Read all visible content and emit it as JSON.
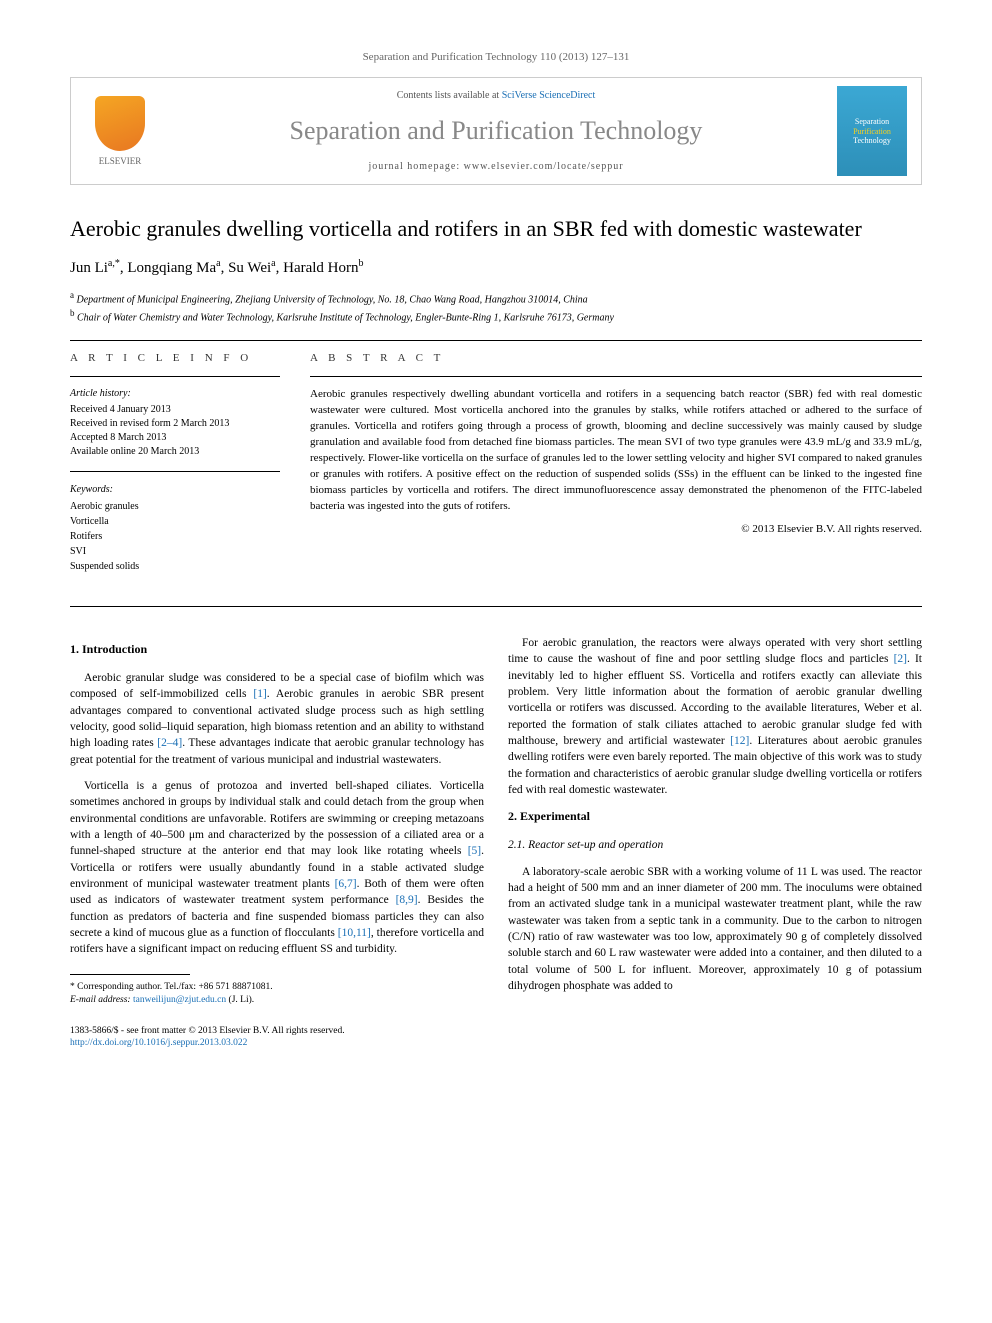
{
  "header": {
    "citation": "Separation and Purification Technology 110 (2013) 127–131",
    "contents_prefix": "Contents lists available at ",
    "contents_link": "SciVerse ScienceDirect",
    "journal_name": "Separation and Purification Technology",
    "homepage_prefix": "journal homepage: ",
    "homepage_url": "www.elsevier.com/locate/seppur",
    "publisher": "ELSEVIER",
    "cover_word1": "Separation",
    "cover_word2": "Purification",
    "cover_word3": "Technology"
  },
  "title": "Aerobic granules dwelling vorticella and rotifers in an SBR fed with domestic wastewater",
  "authors": [
    {
      "name": "Jun Li",
      "marks": "a,*"
    },
    {
      "name": "Longqiang Ma",
      "marks": "a"
    },
    {
      "name": "Su Wei",
      "marks": "a"
    },
    {
      "name": "Harald Horn",
      "marks": "b"
    }
  ],
  "affiliations": [
    {
      "mark": "a",
      "text": "Department of Municipal Engineering, Zhejiang University of Technology, No. 18, Chao Wang Road, Hangzhou 310014, China"
    },
    {
      "mark": "b",
      "text": "Chair of Water Chemistry and Water Technology, Karlsruhe Institute of Technology, Engler-Bunte-Ring 1, Karlsruhe 76173, Germany"
    }
  ],
  "article_info": {
    "heading": "A R T I C L E   I N F O",
    "history_label": "Article history:",
    "history": [
      "Received 4 January 2013",
      "Received in revised form 2 March 2013",
      "Accepted 8 March 2013",
      "Available online 20 March 2013"
    ],
    "keywords_label": "Keywords:",
    "keywords": [
      "Aerobic granules",
      "Vorticella",
      "Rotifers",
      "SVI",
      "Suspended solids"
    ]
  },
  "abstract": {
    "heading": "A B S T R A C T",
    "text": "Aerobic granules respectively dwelling abundant vorticella and rotifers in a sequencing batch reactor (SBR) fed with real domestic wastewater were cultured. Most vorticella anchored into the granules by stalks, while rotifers attached or adhered to the surface of granules. Vorticella and rotifers going through a process of growth, blooming and decline successively was mainly caused by sludge granulation and available food from detached fine biomass particles. The mean SVI of two type granules were 43.9 mL/g and 33.9 mL/g, respectively. Flower-like vorticella on the surface of granules led to the lower settling velocity and higher SVI compared to naked granules or granules with rotifers. A positive effect on the reduction of suspended solids (SSs) in the effluent can be linked to the ingested fine biomass particles by vorticella and rotifers. The direct immunofluorescence assay demonstrated the phenomenon of the FITC-labeled bacteria was ingested into the guts of rotifers.",
    "copyright": "© 2013 Elsevier B.V. All rights reserved."
  },
  "sections": {
    "intro_heading": "1. Introduction",
    "intro_p1_a": "Aerobic granular sludge was considered to be a special case of biofilm which was composed of self-immobilized cells ",
    "intro_p1_ref1": "[1]",
    "intro_p1_b": ". Aerobic granules in aerobic SBR present advantages compared to conventional activated sludge process such as high settling velocity, good solid–liquid separation, high biomass retention and an ability to withstand high loading rates ",
    "intro_p1_ref2": "[2–4]",
    "intro_p1_c": ". These advantages indicate that aerobic granular technology has great potential for the treatment of various municipal and industrial wastewaters.",
    "intro_p2_a": "Vorticella is a genus of protozoa and inverted bell-shaped ciliates. Vorticella sometimes anchored in groups by individual stalk and could detach from the group when environmental conditions are unfavorable. Rotifers are swimming or creeping metazoans with a length of 40–500 μm and characterized by the possession of a ciliated area or a funnel-shaped structure at the anterior end that may look like rotating wheels ",
    "intro_p2_ref1": "[5]",
    "intro_p2_b": ". Vorticella or rotifers were usually abundantly found in a stable activated sludge environment of municipal wastewater treatment plants ",
    "intro_p2_ref2": "[6,7]",
    "intro_p2_c": ". Both of them were often used as indicators of wastewater treatment system performance ",
    "intro_p2_ref3": "[8,9]",
    "intro_p2_d": ". Besides the function as predators of bacteria and fine suspended biomass particles they can also secrete a kind of mucous glue as a function of flocculants ",
    "intro_p2_ref4": "[10,11]",
    "intro_p2_e": ", therefore vorticella and rotifers have a significant impact on reducing effluent SS and turbidity.",
    "intro_p3_a": "For aerobic granulation, the reactors were always operated with very short settling time to cause the washout of fine and poor settling sludge flocs and particles ",
    "intro_p3_ref1": "[2]",
    "intro_p3_b": ". It inevitably led to higher effluent SS. Vorticella and rotifers exactly can alleviate this problem. Very little information about the formation of aerobic granular dwelling vorticella or rotifers was discussed. According to the available literatures, Weber et al. reported the formation of stalk ciliates attached to aerobic granular sludge fed with malthouse, brewery and artificial wastewater ",
    "intro_p3_ref2": "[12]",
    "intro_p3_c": ". Literatures about aerobic granules dwelling rotifers were even barely reported. The main objective of this work was to study the formation and characteristics of aerobic granular sludge dwelling vorticella or rotifers fed with real domestic wastewater.",
    "exp_heading": "2. Experimental",
    "exp_sub_heading": "2.1. Reactor set-up and operation",
    "exp_p1": "A laboratory-scale aerobic SBR with a working volume of 11 L was used. The reactor had a height of 500 mm and an inner diameter of 200 mm. The inoculums were obtained from an activated sludge tank in a municipal wastewater treatment plant, while the raw wastewater was taken from a septic tank in a community. Due to the carbon to nitrogen (C/N) ratio of raw wastewater was too low, approximately 90 g of completely dissolved soluble starch and 60 L raw wastewater were added into a container, and then diluted to a total volume of 500 L for influent. Moreover, approximately 10 g of potassium dihydrogen phosphate was added to"
  },
  "footnotes": {
    "corresponding_label": "* Corresponding author. Tel./fax: +86 571 88871081.",
    "email_label": "E-mail address:",
    "email": "tanweilijun@zjut.edu.cn",
    "email_suffix": "(J. Li)."
  },
  "footer": {
    "line1": "1383-5866/$ - see front matter © 2013 Elsevier B.V. All rights reserved.",
    "line2_label": "http://dx.doi.org/",
    "line2_doi": "10.1016/j.seppur.2013.03.022"
  },
  "colors": {
    "link": "#1a6fb5",
    "header_gray": "#888888",
    "text": "#000000"
  }
}
